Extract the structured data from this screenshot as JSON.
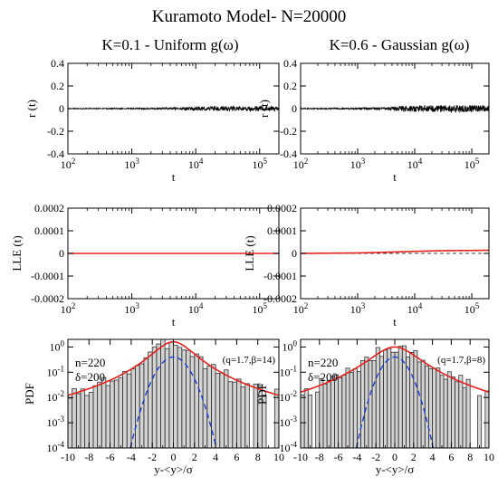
{
  "title": "Kuramoto Model- N=20000",
  "columns": [
    {
      "title": "K=0.1 - Uniform g(ω)"
    },
    {
      "title": "K=0.6 - Gaussian g(ω)"
    }
  ],
  "chart_data": [
    {
      "id": "r-left",
      "type": "line",
      "xlabel": "t",
      "ylabel": "r (t)",
      "xscale": "log",
      "xlim": [
        100,
        200000
      ],
      "x_ticks": [
        100,
        1000,
        10000,
        100000
      ],
      "x_tick_labels": [
        [
          "10",
          "2"
        ],
        [
          "10",
          "3"
        ],
        [
          "10",
          "4"
        ],
        [
          "10",
          "5"
        ]
      ],
      "ylim": [
        -0.4,
        0.4
      ],
      "y_ticks": [
        -0.4,
        -0.2,
        0,
        0.2,
        0.4
      ],
      "y_tick_labels": [
        "-0.4",
        "-0.2",
        "0",
        "0.2",
        "0.4"
      ],
      "series": [
        {
          "color": "#000000",
          "x": [
            100,
            300,
            1000,
            3000,
            5000,
            10000,
            30000,
            100000,
            200000
          ],
          "y": [
            0,
            0,
            0,
            0,
            0,
            0,
            0,
            0,
            0
          ],
          "noise": [
            0.004,
            0.005,
            0.006,
            0.008,
            0.012,
            0.018,
            0.022,
            0.024,
            0.022
          ]
        }
      ]
    },
    {
      "id": "r-right",
      "type": "line",
      "xlabel": "t",
      "ylabel": "r (t)",
      "xscale": "log",
      "xlim": [
        100,
        200000
      ],
      "x_ticks": [
        100,
        1000,
        10000,
        100000
      ],
      "x_tick_labels": [
        [
          "10",
          "2"
        ],
        [
          "10",
          "3"
        ],
        [
          "10",
          "4"
        ],
        [
          "10",
          "5"
        ]
      ],
      "ylim": [
        -0.4,
        0.4
      ],
      "y_ticks": [
        -0.4,
        -0.2,
        0,
        0.2,
        0.4
      ],
      "y_tick_labels": [
        "-0.4",
        "-0.2",
        "0",
        "0.2",
        "0.4"
      ],
      "series": [
        {
          "color": "#000000",
          "x": [
            100,
            300,
            1000,
            3000,
            5000,
            10000,
            30000,
            100000,
            200000
          ],
          "y": [
            0,
            0,
            0,
            0,
            0,
            0,
            0,
            0,
            0
          ],
          "noise": [
            0.005,
            0.006,
            0.008,
            0.012,
            0.022,
            0.03,
            0.032,
            0.03,
            0.028
          ]
        }
      ]
    },
    {
      "id": "lle-left",
      "type": "line",
      "xlabel": "t",
      "ylabel": "LLE (t)",
      "xscale": "log",
      "xlim": [
        100,
        200000
      ],
      "x_ticks": [
        100,
        1000,
        10000,
        100000
      ],
      "x_tick_labels": [
        [
          "10",
          "2"
        ],
        [
          "10",
          "3"
        ],
        [
          "10",
          "4"
        ],
        [
          "10",
          "5"
        ]
      ],
      "ylim": [
        -0.0002,
        0.0002
      ],
      "y_ticks": [
        -0.0002,
        -0.0001,
        0,
        0.0001,
        0.0002
      ],
      "y_tick_labels": [
        "-0.0002",
        "-0.0001",
        "0",
        "0.0001",
        "0.0002"
      ],
      "reference_line": 0,
      "series": [
        {
          "color": "#e8201c",
          "x": [
            100,
            1000,
            10000,
            100000,
            200000
          ],
          "y": [
            0,
            0,
            0,
            0,
            0
          ]
        }
      ]
    },
    {
      "id": "lle-right",
      "type": "line",
      "xlabel": "t",
      "ylabel": "LLE (t)",
      "xscale": "log",
      "xlim": [
        100,
        200000
      ],
      "x_ticks": [
        100,
        1000,
        10000,
        100000
      ],
      "x_tick_labels": [
        [
          "10",
          "2"
        ],
        [
          "10",
          "3"
        ],
        [
          "10",
          "4"
        ],
        [
          "10",
          "5"
        ]
      ],
      "ylim": [
        -0.0002,
        0.0002
      ],
      "y_ticks": [
        -0.0002,
        -0.0001,
        0,
        0.0001,
        0.0002
      ],
      "y_tick_labels": [
        "-0.0002",
        "-0.0001",
        "0",
        "0.0001",
        "0.0002"
      ],
      "reference_line": 0,
      "series": [
        {
          "color": "#e8201c",
          "x": [
            100,
            1000,
            3000,
            10000,
            30000,
            100000,
            200000
          ],
          "y": [
            0,
            2e-06,
            5e-06,
            9e-06,
            1.2e-05,
            1.3e-05,
            1.4e-05
          ]
        }
      ]
    },
    {
      "id": "pdf-left",
      "type": "histogram",
      "xlabel": "y-<y>/σ",
      "ylabel": "PDF",
      "xscale": "linear",
      "xlim": [
        -10,
        10
      ],
      "x_ticks": [
        -10,
        -8,
        -6,
        -4,
        -2,
        0,
        2,
        4,
        6,
        8,
        10
      ],
      "x_tick_labels": [
        "-10",
        "-8",
        "-6",
        "-4",
        "-2",
        "0",
        "2",
        "4",
        "6",
        "8",
        "10"
      ],
      "yscale": "log",
      "ylim": [
        0.0001,
        2
      ],
      "y_ticks": [
        0.0001,
        0.001,
        0.01,
        0.1,
        1
      ],
      "y_tick_labels": [
        [
          "10",
          "-4"
        ],
        [
          "10",
          "-3"
        ],
        [
          "10",
          "-2"
        ],
        [
          "10",
          "-1"
        ],
        [
          "10",
          "0"
        ]
      ],
      "annotations": {
        "n": "n=220",
        "delta": "δ=200",
        "params": "(q=1.7,β=14)"
      },
      "histogram": {
        "bin_width": 0.4,
        "base": 1.6,
        "beta": 14,
        "q": 1.7,
        "seed": 3
      },
      "qgaussian": {
        "amplitude": 1.6,
        "beta": 14,
        "q": 1.7
      },
      "gaussian": {
        "amplitude": 0.4,
        "sigma": 1
      }
    },
    {
      "id": "pdf-right",
      "type": "histogram",
      "xlabel": "y-<y>/σ",
      "ylabel": "PDF",
      "xscale": "linear",
      "xlim": [
        -10,
        10
      ],
      "x_ticks": [
        -10,
        -8,
        -6,
        -4,
        -2,
        0,
        2,
        4,
        6,
        8,
        10
      ],
      "x_tick_labels": [
        "-10",
        "-8",
        "-6",
        "-4",
        "-2",
        "0",
        "2",
        "4",
        "6",
        "8",
        "10"
      ],
      "yscale": "log",
      "ylim": [
        0.0001,
        2
      ],
      "y_ticks": [
        0.0001,
        0.001,
        0.01,
        0.1,
        1
      ],
      "y_tick_labels": [
        [
          "10",
          "-4"
        ],
        [
          "10",
          "-3"
        ],
        [
          "10",
          "-2"
        ],
        [
          "10",
          "-1"
        ],
        [
          "10",
          "0"
        ]
      ],
      "annotations": {
        "n": "n=220",
        "delta": "δ=200",
        "params": "(q=1.7,β=8)"
      },
      "histogram": {
        "bin_width": 0.4,
        "base": 1.0,
        "beta": 8,
        "q": 1.7,
        "seed": 7
      },
      "qgaussian": {
        "amplitude": 1.0,
        "beta": 8,
        "q": 1.7
      },
      "gaussian": {
        "amplitude": 0.4,
        "sigma": 1
      }
    }
  ],
  "colors": {
    "axis": "#000000",
    "fit": "#e8201c",
    "gaussian": "#1a3fd0",
    "hist_fill": "#d3d3d3",
    "hist_edge": "#333333"
  }
}
